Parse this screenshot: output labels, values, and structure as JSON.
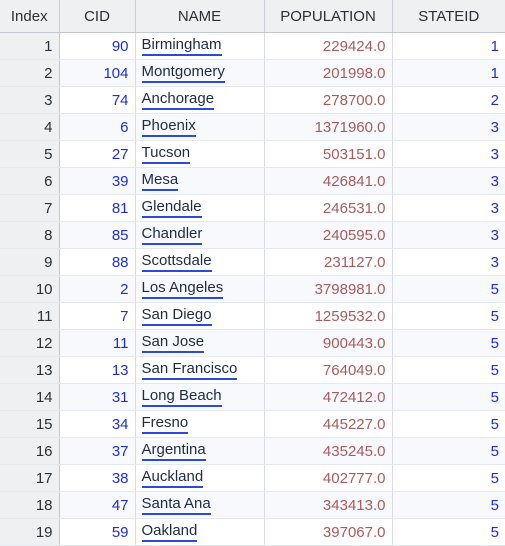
{
  "columns": {
    "index": "Index",
    "cid": "CID",
    "name": "NAME",
    "population": "POPULATION",
    "stateid": "STATEID"
  },
  "rows": [
    {
      "index": "1",
      "cid": "90",
      "name": "Birmingham",
      "population": "229424.0",
      "stateid": "1"
    },
    {
      "index": "2",
      "cid": "104",
      "name": "Montgomery",
      "population": "201998.0",
      "stateid": "1"
    },
    {
      "index": "3",
      "cid": "74",
      "name": "Anchorage",
      "population": "278700.0",
      "stateid": "2"
    },
    {
      "index": "4",
      "cid": "6",
      "name": "Phoenix",
      "population": "1371960.0",
      "stateid": "3"
    },
    {
      "index": "5",
      "cid": "27",
      "name": "Tucson",
      "population": "503151.0",
      "stateid": "3"
    },
    {
      "index": "6",
      "cid": "39",
      "name": "Mesa",
      "population": "426841.0",
      "stateid": "3"
    },
    {
      "index": "7",
      "cid": "81",
      "name": "Glendale",
      "population": "246531.0",
      "stateid": "3"
    },
    {
      "index": "8",
      "cid": "85",
      "name": "Chandler",
      "population": "240595.0",
      "stateid": "3"
    },
    {
      "index": "9",
      "cid": "88",
      "name": "Scottsdale",
      "population": "231127.0",
      "stateid": "3"
    },
    {
      "index": "10",
      "cid": "2",
      "name": "Los Angeles",
      "population": "3798981.0",
      "stateid": "5"
    },
    {
      "index": "11",
      "cid": "7",
      "name": "San Diego",
      "population": "1259532.0",
      "stateid": "5"
    },
    {
      "index": "12",
      "cid": "11",
      "name": "San Jose",
      "population": "900443.0",
      "stateid": "5"
    },
    {
      "index": "13",
      "cid": "13",
      "name": "San Francisco",
      "population": "764049.0",
      "stateid": "5"
    },
    {
      "index": "14",
      "cid": "31",
      "name": "Long Beach",
      "population": "472412.0",
      "stateid": "5"
    },
    {
      "index": "15",
      "cid": "34",
      "name": "Fresno",
      "population": "445227.0",
      "stateid": "5"
    },
    {
      "index": "16",
      "cid": "37",
      "name": "Argentina",
      "population": "435245.0",
      "stateid": "5"
    },
    {
      "index": "17",
      "cid": "38",
      "name": "Auckland",
      "population": "402777.0",
      "stateid": "5"
    },
    {
      "index": "18",
      "cid": "47",
      "name": "Santa Ana",
      "population": "343413.0",
      "stateid": "5"
    },
    {
      "index": "19",
      "cid": "59",
      "name": "Oakland",
      "population": "397067.0",
      "stateid": "5"
    }
  ],
  "colors": {
    "id_blue": "#1f2fcf",
    "population_red": "#a85b5b",
    "link_underline": "#2b4bd6",
    "header_bg": "#eef0f2"
  }
}
